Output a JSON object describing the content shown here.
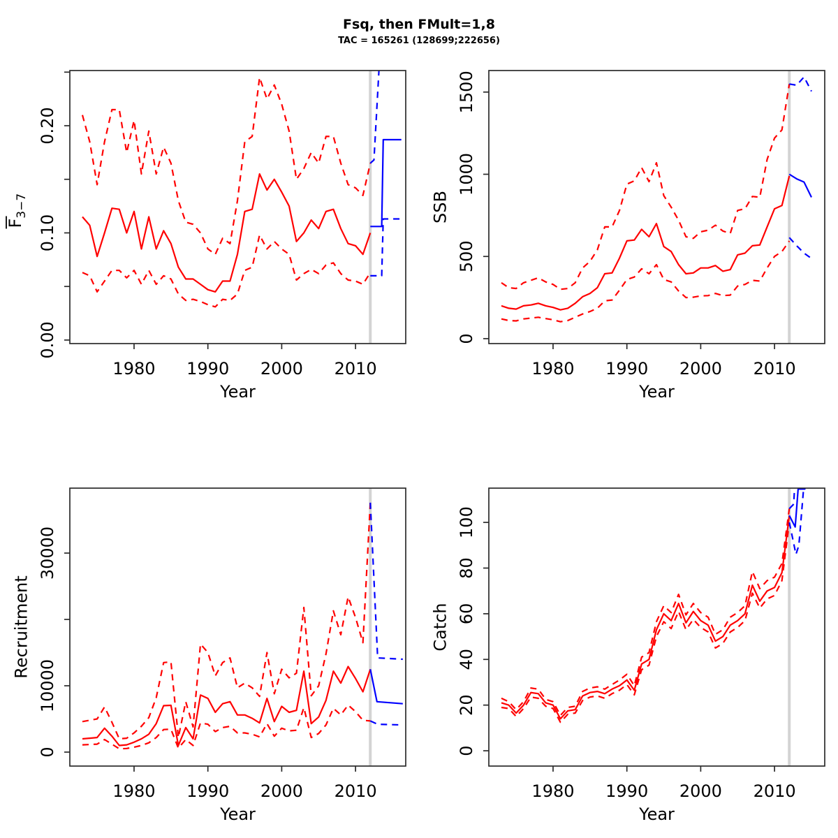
{
  "title": "Fsq, then FMult=1,8",
  "subtitle": "TAC = 165261 (128699;222656)",
  "colors": {
    "historical": "#ff0000",
    "forecast": "#0000ff",
    "divider": "#d3d3d3",
    "frame": "#2b2b2b",
    "text": "#000000"
  },
  "forecast_start_year": 2012,
  "chart_data": [
    {
      "name": "f-bar-3-7",
      "type": "line",
      "ylabel": "F",
      "ylabel_sub": "3−7",
      "ylabel_overline": true,
      "xlabel": "Year",
      "xlim": [
        1971.3,
        2016.8
      ],
      "ylim": [
        -0.0033,
        0.2515
      ],
      "x_ticks": [
        1980,
        1990,
        2000,
        2010
      ],
      "y_ticks": [
        {
          "v": 0,
          "label": "0.00"
        },
        {
          "v": 0.05,
          "label": ""
        },
        {
          "v": 0.1,
          "label": "0.10"
        },
        {
          "v": 0.15,
          "label": ""
        },
        {
          "v": 0.2,
          "label": "0.20"
        },
        {
          "v": 0.25,
          "label": ""
        }
      ],
      "x_hist": [
        1973,
        1974,
        1975,
        1976,
        1977,
        1978,
        1979,
        1980,
        1981,
        1982,
        1983,
        1984,
        1985,
        1986,
        1987,
        1988,
        1989,
        1990,
        1991,
        1992,
        1993,
        1994,
        1995,
        1996,
        1997,
        1998,
        1999,
        2000,
        2001,
        2002,
        2003,
        2004,
        2005,
        2006,
        2007,
        2008,
        2009,
        2010,
        2011,
        2012
      ],
      "series": [
        {
          "name": "median-historical",
          "phase": "historical",
          "style": "solid",
          "y": [
            0.115,
            0.107,
            0.078,
            0.1,
            0.123,
            0.122,
            0.1,
            0.12,
            0.085,
            0.115,
            0.085,
            0.102,
            0.09,
            0.068,
            0.057,
            0.057,
            0.052,
            0.047,
            0.045,
            0.055,
            0.055,
            0.08,
            0.12,
            0.122,
            0.155,
            0.14,
            0.15,
            0.138,
            0.125,
            0.092,
            0.1,
            0.112,
            0.104,
            0.12,
            0.122,
            0.104,
            0.09,
            0.088,
            0.08,
            0.1
          ]
        },
        {
          "name": "ci-upper-historical",
          "phase": "historical",
          "style": "dashed",
          "y": [
            0.21,
            0.185,
            0.145,
            0.185,
            0.215,
            0.215,
            0.175,
            0.205,
            0.155,
            0.195,
            0.155,
            0.18,
            0.165,
            0.13,
            0.11,
            0.108,
            0.1,
            0.085,
            0.08,
            0.095,
            0.09,
            0.13,
            0.185,
            0.19,
            0.245,
            0.225,
            0.238,
            0.22,
            0.195,
            0.15,
            0.16,
            0.175,
            0.165,
            0.19,
            0.19,
            0.165,
            0.145,
            0.142,
            0.135,
            0.165
          ]
        },
        {
          "name": "ci-lower-historical",
          "phase": "historical",
          "style": "dashed",
          "y": [
            0.063,
            0.06,
            0.045,
            0.055,
            0.065,
            0.065,
            0.058,
            0.065,
            0.052,
            0.065,
            0.052,
            0.06,
            0.057,
            0.043,
            0.037,
            0.038,
            0.036,
            0.033,
            0.031,
            0.038,
            0.037,
            0.043,
            0.065,
            0.068,
            0.098,
            0.085,
            0.092,
            0.085,
            0.08,
            0.056,
            0.062,
            0.066,
            0.062,
            0.07,
            0.072,
            0.062,
            0.056,
            0.055,
            0.052,
            0.063
          ]
        },
        {
          "name": "median-forecast",
          "phase": "forecast",
          "style": "solid",
          "x": [
            2012,
            2013.55,
            2013.75,
            2016.2
          ],
          "y": [
            0.106,
            0.106,
            0.187,
            0.187
          ]
        },
        {
          "name": "ci-upper-forecast",
          "phase": "forecast",
          "style": "dashed",
          "x": [
            2012,
            2012.5,
            2013.6,
            2016.2
          ],
          "y": [
            0.165,
            0.168,
            0.305,
            0.335
          ]
        },
        {
          "name": "ci-lower-forecast",
          "phase": "forecast",
          "style": "dashed",
          "x": [
            2012,
            2013.55,
            2013.75,
            2016.2
          ],
          "y": [
            0.06,
            0.06,
            0.113,
            0.113
          ]
        }
      ]
    },
    {
      "name": "ssb",
      "type": "line",
      "ylabel": "SSB",
      "xlabel": "Year",
      "xlim": [
        1971.3,
        2016.8
      ],
      "ylim": [
        -30,
        1631
      ],
      "x_ticks": [
        1980,
        1990,
        2000,
        2010
      ],
      "y_ticks": [
        {
          "v": 0,
          "label": "0"
        },
        {
          "v": 500,
          "label": "500"
        },
        {
          "v": 1000,
          "label": "1000"
        },
        {
          "v": 1500,
          "label": "1500"
        }
      ],
      "x_hist": [
        1973,
        1974,
        1975,
        1976,
        1977,
        1978,
        1979,
        1980,
        1981,
        1982,
        1983,
        1984,
        1985,
        1986,
        1987,
        1988,
        1989,
        1990,
        1991,
        1992,
        1993,
        1994,
        1995,
        1996,
        1997,
        1998,
        1999,
        2000,
        2001,
        2002,
        2003,
        2004,
        2005,
        2006,
        2007,
        2008,
        2009,
        2010,
        2011,
        2012
      ],
      "series": [
        {
          "name": "median-historical",
          "phase": "historical",
          "style": "solid",
          "y": [
            200,
            185,
            180,
            200,
            205,
            215,
            200,
            190,
            175,
            185,
            215,
            255,
            275,
            310,
            395,
            400,
            490,
            595,
            600,
            665,
            620,
            700,
            560,
            530,
            450,
            395,
            400,
            430,
            430,
            445,
            410,
            420,
            510,
            520,
            565,
            570,
            680,
            790,
            810,
            990
          ]
        },
        {
          "name": "ci-upper-historical",
          "phase": "historical",
          "style": "dashed",
          "y": [
            340,
            310,
            305,
            340,
            355,
            370,
            345,
            330,
            300,
            305,
            340,
            430,
            470,
            540,
            680,
            680,
            780,
            940,
            960,
            1040,
            955,
            1070,
            870,
            800,
            720,
            620,
            610,
            650,
            660,
            690,
            655,
            640,
            780,
            790,
            865,
            860,
            1090,
            1220,
            1270,
            1549
          ]
        },
        {
          "name": "ci-lower-historical",
          "phase": "historical",
          "style": "dashed",
          "y": [
            120,
            110,
            108,
            120,
            125,
            130,
            122,
            115,
            103,
            110,
            130,
            150,
            165,
            185,
            230,
            235,
            295,
            360,
            375,
            425,
            395,
            450,
            360,
            345,
            290,
            250,
            252,
            260,
            262,
            275,
            262,
            265,
            320,
            330,
            355,
            350,
            430,
            500,
            530,
            594
          ]
        },
        {
          "name": "median-forecast",
          "phase": "forecast",
          "style": "solid",
          "x": [
            2012,
            2013,
            2014,
            2015
          ],
          "y": [
            1000,
            972,
            952,
            860
          ]
        },
        {
          "name": "ci-upper-forecast",
          "phase": "forecast",
          "style": "dashed",
          "x": [
            2012,
            2013,
            2014,
            2015
          ],
          "y": [
            1549,
            1542,
            1592,
            1505
          ]
        },
        {
          "name": "ci-lower-forecast",
          "phase": "forecast",
          "style": "dashed",
          "x": [
            2012,
            2013,
            2014,
            2015
          ],
          "y": [
            615,
            565,
            520,
            488
          ]
        }
      ]
    },
    {
      "name": "recruitment",
      "type": "line",
      "ylabel": "Recruitment",
      "xlabel": "Year",
      "xlim": [
        1971.3,
        2016.8
      ],
      "ylim": [
        -2105,
        39790
      ],
      "x_ticks": [
        1980,
        1990,
        2000,
        2010
      ],
      "y_ticks": [
        {
          "v": 0,
          "label": "0"
        },
        {
          "v": 10000,
          "label": "10000"
        },
        {
          "v": 20000,
          "label": ""
        },
        {
          "v": 30000,
          "label": "30000"
        }
      ],
      "x_hist": [
        1973,
        1974,
        1975,
        1976,
        1977,
        1978,
        1979,
        1980,
        1981,
        1982,
        1983,
        1984,
        1985,
        1986,
        1987,
        1988,
        1989,
        1990,
        1991,
        1992,
        1993,
        1994,
        1995,
        1996,
        1997,
        1998,
        1999,
        2000,
        2001,
        2002,
        2003,
        2004,
        2005,
        2006,
        2007,
        2008,
        2009,
        2010,
        2011,
        2012
      ],
      "series": [
        {
          "name": "median-historical",
          "phase": "historical",
          "style": "solid",
          "y": [
            2000,
            2100,
            2200,
            3600,
            2400,
            1000,
            1100,
            1500,
            2000,
            2700,
            4300,
            7000,
            7050,
            1000,
            3700,
            2000,
            8600,
            8100,
            6000,
            7300,
            7600,
            5600,
            5600,
            5100,
            4400,
            8100,
            4600,
            6900,
            6000,
            6300,
            12200,
            4300,
            5300,
            7800,
            12200,
            10400,
            12900,
            11100,
            9100,
            12500
          ]
        },
        {
          "name": "ci-upper-historical",
          "phase": "historical",
          "style": "dashed",
          "y": [
            4600,
            4800,
            5000,
            6800,
            4500,
            2000,
            2100,
            2900,
            3900,
            5200,
            8200,
            13500,
            13600,
            2200,
            7600,
            3800,
            16300,
            15000,
            11500,
            13500,
            14200,
            9700,
            10400,
            9700,
            8400,
            15000,
            8800,
            12500,
            11200,
            11900,
            21800,
            8500,
            10000,
            14800,
            21300,
            17700,
            23400,
            20300,
            16500,
            37600
          ]
        },
        {
          "name": "ci-lower-historical",
          "phase": "historical",
          "style": "dashed",
          "y": [
            1100,
            1150,
            1200,
            1900,
            1200,
            500,
            550,
            750,
            1000,
            1400,
            2200,
            3400,
            3450,
            600,
            1900,
            1000,
            4400,
            4200,
            3100,
            3700,
            3900,
            2900,
            2900,
            2700,
            2300,
            4300,
            2400,
            3600,
            3200,
            3300,
            6700,
            2200,
            2800,
            4100,
            6600,
            5600,
            7100,
            6100,
            4800,
            4700
          ]
        },
        {
          "name": "median-forecast",
          "phase": "forecast",
          "style": "solid",
          "x": [
            2012,
            2012.9,
            2016.4
          ],
          "y": [
            12500,
            7600,
            7300
          ]
        },
        {
          "name": "ci-upper-forecast",
          "phase": "forecast",
          "style": "dashed",
          "x": [
            2012,
            2013,
            2016.4
          ],
          "y": [
            37600,
            14200,
            14000
          ]
        },
        {
          "name": "ci-lower-forecast",
          "phase": "forecast",
          "style": "dashed",
          "x": [
            2012,
            2013,
            2016.4
          ],
          "y": [
            4700,
            4200,
            4100
          ]
        }
      ]
    },
    {
      "name": "catch",
      "type": "line",
      "ylabel": "Catch",
      "xlabel": "Year",
      "xlim": [
        1971.3,
        2016.8
      ],
      "ylim": [
        -6.7,
        115
      ],
      "x_ticks": [
        1980,
        1990,
        2000,
        2010
      ],
      "y_ticks": [
        {
          "v": 0,
          "label": "0"
        },
        {
          "v": 20,
          "label": "20"
        },
        {
          "v": 40,
          "label": "40"
        },
        {
          "v": 60,
          "label": "60"
        },
        {
          "v": 80,
          "label": "80"
        },
        {
          "v": 100,
          "label": "100"
        }
      ],
      "x_hist": [
        1973,
        1974,
        1975,
        1976,
        1977,
        1978,
        1979,
        1980,
        1981,
        1982,
        1983,
        1984,
        1985,
        1986,
        1987,
        1988,
        1989,
        1990,
        1991,
        1992,
        1993,
        1994,
        1995,
        1996,
        1997,
        1998,
        1999,
        2000,
        2001,
        2002,
        2003,
        2004,
        2005,
        2006,
        2007,
        2008,
        2009,
        2010,
        2011,
        2012
      ],
      "series": [
        {
          "name": "median-historical",
          "phase": "historical",
          "style": "solid",
          "y": [
            21,
            20,
            16.5,
            20,
            25.5,
            25,
            21,
            20,
            14,
            17.5,
            18,
            24,
            25.5,
            26,
            25,
            27,
            28.5,
            31,
            26.5,
            38,
            40,
            53,
            60,
            57,
            64.5,
            56,
            61,
            57,
            55,
            48,
            50,
            55,
            57,
            60,
            72.5,
            65.5,
            70,
            71.5,
            78,
            103
          ]
        },
        {
          "name": "ci-upper-historical",
          "phase": "historical",
          "style": "dashed",
          "y": [
            23,
            21.5,
            18,
            21.5,
            27.5,
            27,
            22.5,
            21.5,
            15.5,
            19,
            19.5,
            26,
            27.5,
            28,
            27,
            29,
            31,
            33.5,
            28.5,
            41,
            43,
            56.5,
            63.5,
            60.5,
            68.5,
            59.5,
            64.5,
            60.5,
            58.5,
            51,
            53,
            58.5,
            60.5,
            63.5,
            78.5,
            71,
            74.5,
            76,
            82,
            106
          ]
        },
        {
          "name": "ci-lower-historical",
          "phase": "historical",
          "style": "dashed",
          "y": [
            19,
            18.5,
            15,
            18.5,
            23.5,
            23,
            19.5,
            18.5,
            12.5,
            16,
            16.5,
            22,
            23.5,
            24,
            23,
            25,
            26.5,
            29,
            24.5,
            35.5,
            37.5,
            50,
            56.5,
            53.5,
            61,
            53,
            57.5,
            54,
            52,
            45,
            47,
            52,
            54,
            57,
            69,
            62.5,
            66.5,
            68,
            74.5,
            100
          ]
        },
        {
          "name": "median-forecast",
          "phase": "forecast",
          "style": "solid",
          "x": [
            2012,
            2012.8,
            2013.2,
            2014.1,
            2014.5,
            2016.2
          ],
          "y": [
            103,
            98,
            114.6,
            114.6,
            130,
            130
          ]
        },
        {
          "name": "ci-upper-forecast",
          "phase": "forecast",
          "style": "dashed",
          "x": [
            2012,
            2012.6,
            2013.1,
            2016.2
          ],
          "y": [
            106,
            108,
            140,
            140
          ]
        },
        {
          "name": "ci-lower-forecast",
          "phase": "forecast",
          "style": "dashed",
          "x": [
            2012,
            2012.9,
            2013.3,
            2014.2,
            2016.2
          ],
          "y": [
            100,
            86,
            90,
            125,
            125
          ]
        }
      ]
    }
  ]
}
